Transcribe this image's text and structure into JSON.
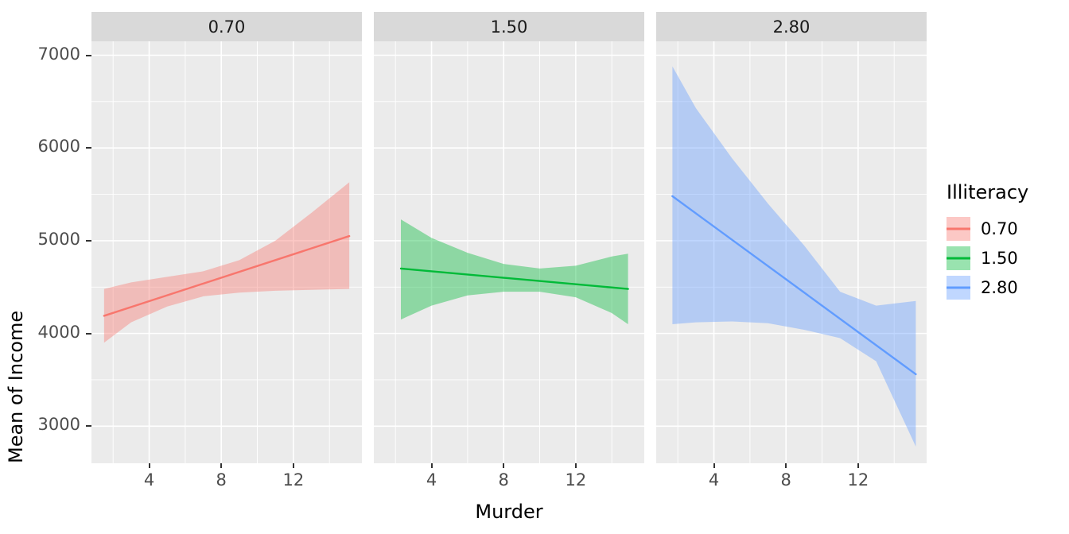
{
  "figure": {
    "bg": "#FFFFFF",
    "panel_bg": "#EBEBEB",
    "strip_bg": "#D9D9D9",
    "grid_color": "#FFFFFF",
    "tick_color": "#333333",
    "axis_text_color": "#4D4D4D"
  },
  "chart_data": {
    "type": "line",
    "xlabel": "Murder",
    "ylabel": "Mean of Income",
    "legend_title": "Illiteracy",
    "legend_position": "right",
    "grid": true,
    "x_domain": [
      0.8,
      15.8
    ],
    "y_domain": [
      2600,
      7150
    ],
    "x_ticks": [
      4,
      8,
      12
    ],
    "x_minor": [
      2,
      6,
      10,
      14
    ],
    "y_ticks": [
      3000,
      4000,
      5000,
      6000,
      7000
    ],
    "y_minor": [
      3500,
      4500,
      5500,
      6500
    ],
    "facets": [
      {
        "label": "0.70",
        "color": "#F8766D",
        "line": {
          "x": [
            1.5,
            15.1
          ],
          "y": [
            4190,
            5050
          ]
        },
        "ribbon": {
          "x": [
            1.5,
            3,
            5,
            7,
            9,
            11,
            13,
            15.1
          ],
          "lower": [
            3900,
            4120,
            4290,
            4400,
            4440,
            4460,
            4470,
            4480
          ],
          "upper": [
            4480,
            4550,
            4610,
            4670,
            4790,
            5000,
            5300,
            5630
          ]
        }
      },
      {
        "label": "1.50",
        "color": "#00BA38",
        "line": {
          "x": [
            2.3,
            14.9
          ],
          "y": [
            4700,
            4480
          ]
        },
        "ribbon": {
          "x": [
            2.3,
            4,
            6,
            8,
            10,
            12,
            14,
            14.9
          ],
          "lower": [
            4150,
            4300,
            4410,
            4450,
            4450,
            4390,
            4220,
            4100
          ],
          "upper": [
            5230,
            5030,
            4870,
            4750,
            4700,
            4730,
            4830,
            4860
          ]
        }
      },
      {
        "label": "2.80",
        "color": "#619CFF",
        "line": {
          "x": [
            1.7,
            15.2
          ],
          "y": [
            5480,
            3560
          ]
        },
        "ribbon": {
          "x": [
            1.7,
            3,
            5,
            7,
            9,
            11,
            13,
            15.2
          ],
          "lower": [
            4100,
            4120,
            4130,
            4110,
            4040,
            3950,
            3700,
            2780
          ],
          "upper": [
            6880,
            6430,
            5890,
            5400,
            4950,
            4450,
            4300,
            4350
          ]
        }
      }
    ],
    "legend": [
      {
        "label": "0.70",
        "color": "#F8766D"
      },
      {
        "label": "1.50",
        "color": "#00BA38"
      },
      {
        "label": "2.80",
        "color": "#619CFF"
      }
    ]
  }
}
